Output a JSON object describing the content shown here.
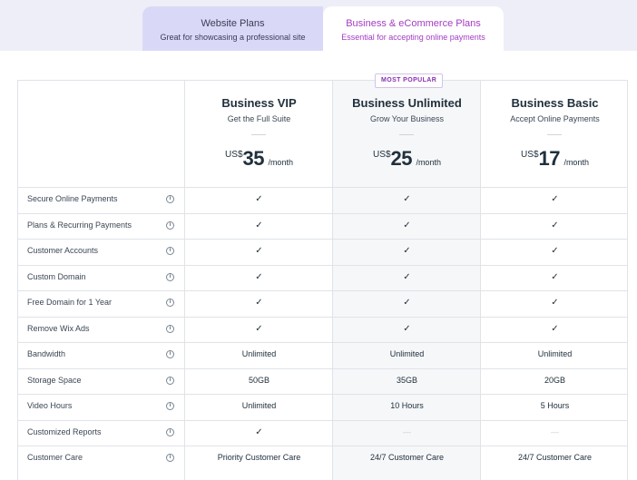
{
  "tabs": [
    {
      "title": "Website Plans",
      "subtitle": "Great for showcasing a professional site"
    },
    {
      "title": "Business & eCommerce Plans",
      "subtitle": "Essential for accepting online payments"
    }
  ],
  "badge": "MOST POPULAR",
  "plans": [
    {
      "name": "Business VIP",
      "tagline": "Get the Full Suite",
      "currency": "US$",
      "amount": "35",
      "period": "/month"
    },
    {
      "name": "Business Unlimited",
      "tagline": "Grow Your Business",
      "currency": "US$",
      "amount": "25",
      "period": "/month"
    },
    {
      "name": "Business Basic",
      "tagline": "Accept Online Payments",
      "currency": "US$",
      "amount": "17",
      "period": "/month"
    }
  ],
  "info_glyph": "i",
  "check_glyph": "✓",
  "dash_glyph": "—",
  "features": [
    {
      "label": "Secure Online Payments",
      "values": [
        "✓",
        "✓",
        "✓"
      ]
    },
    {
      "label": "Plans & Recurring Payments",
      "values": [
        "✓",
        "✓",
        "✓"
      ]
    },
    {
      "label": "Customer Accounts",
      "values": [
        "✓",
        "✓",
        "✓"
      ]
    },
    {
      "label": "Custom Domain",
      "values": [
        "✓",
        "✓",
        "✓"
      ]
    },
    {
      "label": "Free Domain for 1 Year",
      "values": [
        "✓",
        "✓",
        "✓"
      ]
    },
    {
      "label": "Remove Wix Ads",
      "values": [
        "✓",
        "✓",
        "✓"
      ]
    },
    {
      "label": "Bandwidth",
      "values": [
        "Unlimited",
        "Unlimited",
        "Unlimited"
      ]
    },
    {
      "label": "Storage Space",
      "values": [
        "50GB",
        "35GB",
        "20GB"
      ]
    },
    {
      "label": "Video Hours",
      "values": [
        "Unlimited",
        "10 Hours",
        "5 Hours"
      ]
    },
    {
      "label": "Customized Reports",
      "values": [
        "✓",
        "—",
        "—"
      ]
    },
    {
      "label": "Customer Care",
      "values": [
        "Priority Customer Care",
        "24/7 Customer Care",
        "24/7 Customer Care"
      ]
    }
  ]
}
